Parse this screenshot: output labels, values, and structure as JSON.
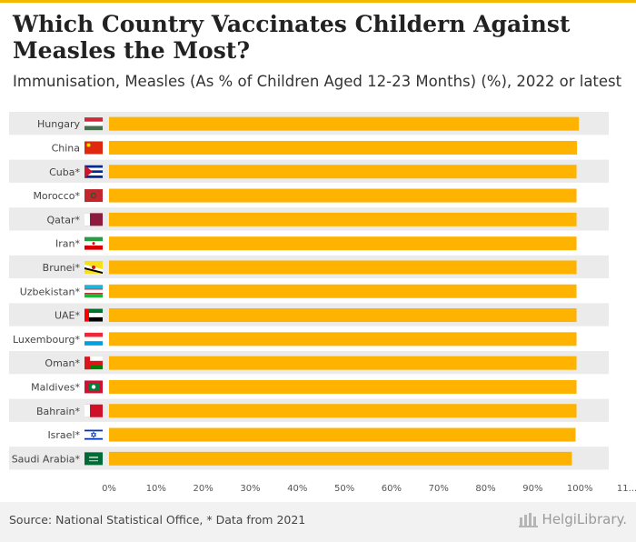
{
  "header": {
    "title": "Which Country Vaccinates Childern Against Measles the Most?",
    "subtitle": "Immunisation, Measles (As % of Children Aged 12-23 Months) (%), 2022 or latest"
  },
  "footer": {
    "source": "Source: National Statistical Office, * Data from 2021",
    "brand": "HelgiLibrary."
  },
  "colors": {
    "bar": "#fdb300",
    "accent": "#f5b800",
    "band": "#ebebeb"
  },
  "chart_data": {
    "type": "bar",
    "orientation": "horizontal",
    "categories": [
      "Hungary",
      "China",
      "Cuba*",
      "Morocco*",
      "Qatar*",
      "Iran*",
      "Brunei*",
      "Uzbekistan*",
      "UAE*",
      "Luxembourg*",
      "Oman*",
      "Maldives*",
      "Bahrain*",
      "Israel*",
      "Saudi Arabia*"
    ],
    "flags": [
      "hungary-flag-icon",
      "china-flag-icon",
      "cuba-flag-icon",
      "morocco-flag-icon",
      "qatar-flag-icon",
      "iran-flag-icon",
      "brunei-flag-icon",
      "uzbekistan-flag-icon",
      "uae-flag-icon",
      "luxembourg-flag-icon",
      "oman-flag-icon",
      "maldives-flag-icon",
      "bahrain-flag-icon",
      "israel-flag-icon",
      "saudi-arabia-flag-icon"
    ],
    "values": [
      99.8,
      99.4,
      99.3,
      99.3,
      99.3,
      99.3,
      99.3,
      99.3,
      99.3,
      99.3,
      99.3,
      99.3,
      99.3,
      99.1,
      98.3
    ],
    "xlim": [
      0,
      110
    ],
    "xticks": [
      "0%",
      "10%",
      "20%",
      "30%",
      "40%",
      "50%",
      "60%",
      "70%",
      "80%",
      "90%",
      "100%",
      "11..."
    ],
    "grid": false,
    "legend": "none"
  }
}
